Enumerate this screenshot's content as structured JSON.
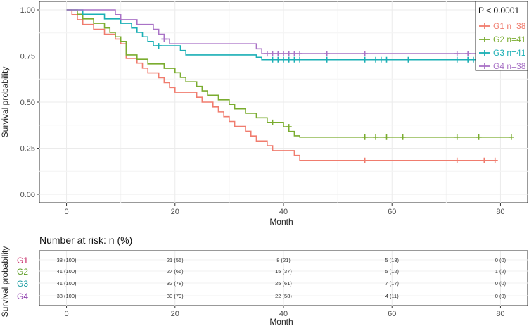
{
  "chart_data": [
    {
      "type": "line",
      "subtype": "kaplan-meier",
      "xlabel": "Month",
      "ylabel": "Survival probability",
      "xlim": [
        -5,
        85
      ],
      "ylim": [
        0,
        1
      ],
      "x_ticks": [
        0,
        20,
        40,
        60,
        80
      ],
      "y_ticks": [
        0.0,
        0.25,
        0.5,
        0.75,
        1.0
      ],
      "y_tick_labels": [
        "0.00",
        "0.25",
        "0.50",
        "0.75",
        "1.00"
      ],
      "grid": true,
      "legend_position": "top-right",
      "pvalue": "P < 0.0001",
      "series": [
        {
          "name": "G1 n=38",
          "color": "#f07c6e",
          "steps": [
            [
              0,
              1.0
            ],
            [
              1,
              0.974
            ],
            [
              2,
              0.947
            ],
            [
              3,
              0.921
            ],
            [
              5,
              0.895
            ],
            [
              7,
              0.868
            ],
            [
              9,
              0.842
            ],
            [
              10,
              0.816
            ],
            [
              11,
              0.737
            ],
            [
              13,
              0.711
            ],
            [
              14,
              0.684
            ],
            [
              15,
              0.658
            ],
            [
              17,
              0.632
            ],
            [
              18,
              0.605
            ],
            [
              19,
              0.579
            ],
            [
              20,
              0.553
            ],
            [
              24,
              0.526
            ],
            [
              25,
              0.5
            ],
            [
              27,
              0.474
            ],
            [
              28,
              0.447
            ],
            [
              29,
              0.421
            ],
            [
              30,
              0.395
            ],
            [
              31,
              0.368
            ],
            [
              33,
              0.342
            ],
            [
              34,
              0.316
            ],
            [
              35,
              0.289
            ],
            [
              37,
              0.263
            ],
            [
              38,
              0.237
            ],
            [
              39,
              0.237
            ],
            [
              40,
              0.237
            ],
            [
              41,
              0.237
            ],
            [
              42,
              0.211
            ],
            [
              43,
              0.184
            ],
            [
              79,
              0.184
            ]
          ],
          "censor": [
            [
              55,
              0.184
            ],
            [
              72,
              0.184
            ],
            [
              77,
              0.184
            ],
            [
              79,
              0.184
            ]
          ]
        },
        {
          "name": "G2 n=41",
          "color": "#7aac2f",
          "steps": [
            [
              0,
              1.0
            ],
            [
              2,
              0.976
            ],
            [
              3,
              0.951
            ],
            [
              5,
              0.927
            ],
            [
              7,
              0.902
            ],
            [
              8,
              0.878
            ],
            [
              9,
              0.854
            ],
            [
              10,
              0.829
            ],
            [
              11,
              0.756
            ],
            [
              13,
              0.732
            ],
            [
              15,
              0.707
            ],
            [
              18,
              0.683
            ],
            [
              20,
              0.659
            ],
            [
              21,
              0.634
            ],
            [
              22,
              0.61
            ],
            [
              24,
              0.585
            ],
            [
              25,
              0.561
            ],
            [
              26,
              0.537
            ],
            [
              28,
              0.512
            ],
            [
              30,
              0.488
            ],
            [
              31,
              0.463
            ],
            [
              33,
              0.439
            ],
            [
              35,
              0.415
            ],
            [
              37,
              0.39
            ],
            [
              40,
              0.366
            ],
            [
              41,
              0.341
            ],
            [
              42,
              0.317
            ],
            [
              43,
              0.31
            ],
            [
              82,
              0.31
            ]
          ],
          "censor": [
            [
              38,
              0.39
            ],
            [
              41,
              0.366
            ],
            [
              55,
              0.31
            ],
            [
              57,
              0.31
            ],
            [
              59,
              0.31
            ],
            [
              62,
              0.31
            ],
            [
              72,
              0.31
            ],
            [
              76,
              0.31
            ],
            [
              82,
              0.31
            ]
          ]
        },
        {
          "name": "G3 n=41",
          "color": "#1aafb5",
          "steps": [
            [
              0,
              1.0
            ],
            [
              3,
              0.976
            ],
            [
              7,
              0.951
            ],
            [
              10,
              0.927
            ],
            [
              12,
              0.902
            ],
            [
              13,
              0.878
            ],
            [
              14,
              0.854
            ],
            [
              15,
              0.829
            ],
            [
              16,
              0.805
            ],
            [
              21,
              0.78
            ],
            [
              22,
              0.756
            ],
            [
              35,
              0.743
            ],
            [
              36,
              0.73
            ],
            [
              78,
              0.73
            ]
          ],
          "censor": [
            [
              17,
              0.805
            ],
            [
              38,
              0.73
            ],
            [
              39,
              0.73
            ],
            [
              40,
              0.73
            ],
            [
              41,
              0.73
            ],
            [
              42,
              0.73
            ],
            [
              43,
              0.73
            ],
            [
              48,
              0.73
            ],
            [
              55,
              0.73
            ],
            [
              57,
              0.73
            ],
            [
              58,
              0.73
            ],
            [
              59,
              0.73
            ],
            [
              63,
              0.73
            ],
            [
              72,
              0.73
            ],
            [
              74,
              0.73
            ],
            [
              75,
              0.73
            ],
            [
              77,
              0.73
            ],
            [
              78,
              0.73
            ]
          ],
          "censor_labels": []
        },
        {
          "name": "G4 n=38",
          "color": "#a972c6",
          "steps": [
            [
              0,
              1.0
            ],
            [
              9,
              0.974
            ],
            [
              10,
              0.947
            ],
            [
              13,
              0.921
            ],
            [
              16,
              0.895
            ],
            [
              17,
              0.868
            ],
            [
              18,
              0.842
            ],
            [
              19,
              0.816
            ],
            [
              35,
              0.789
            ],
            [
              36,
              0.763
            ],
            [
              77,
              0.763
            ]
          ],
          "censor": [
            [
              18,
              0.842
            ],
            [
              37,
              0.763
            ],
            [
              38,
              0.763
            ],
            [
              39,
              0.763
            ],
            [
              40,
              0.763
            ],
            [
              41,
              0.763
            ],
            [
              42,
              0.763
            ],
            [
              43,
              0.763
            ],
            [
              48,
              0.763
            ],
            [
              55,
              0.763
            ],
            [
              72,
              0.763
            ],
            [
              74,
              0.763
            ],
            [
              77,
              0.763
            ]
          ]
        }
      ]
    },
    {
      "type": "table",
      "title": "Number at risk: n (%)",
      "xlabel": "Month",
      "ylabel": "Survival probability",
      "xlim": [
        -5,
        85
      ],
      "x_ticks": [
        0,
        20,
        40,
        60,
        80
      ],
      "rows": [
        {
          "label": "G1",
          "color": "#c2185b",
          "values": [
            "38 (100)",
            "21 (55)",
            "8 (21)",
            "5 (13)",
            "0 (0)"
          ]
        },
        {
          "label": "G2",
          "color": "#5a9a20",
          "values": [
            "41 (100)",
            "27 (66)",
            "15 (37)",
            "5 (12)",
            "1 (2)"
          ]
        },
        {
          "label": "G3",
          "color": "#159aa0",
          "values": [
            "41 (100)",
            "32 (78)",
            "25 (61)",
            "7 (17)",
            "0 (0)"
          ]
        },
        {
          "label": "G4",
          "color": "#8e3fae",
          "values": [
            "38 (100)",
            "30 (79)",
            "22 (58)",
            "4 (11)",
            "0 (0)"
          ]
        }
      ]
    }
  ]
}
